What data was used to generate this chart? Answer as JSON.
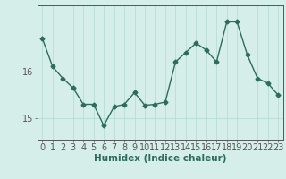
{
  "x": [
    0,
    1,
    2,
    3,
    4,
    5,
    6,
    7,
    8,
    9,
    10,
    11,
    12,
    13,
    14,
    15,
    16,
    17,
    18,
    19,
    20,
    21,
    22,
    23
  ],
  "y": [
    16.7,
    16.1,
    15.85,
    15.65,
    15.3,
    15.3,
    14.85,
    15.25,
    15.3,
    15.55,
    15.28,
    15.3,
    15.35,
    16.2,
    16.4,
    16.6,
    16.45,
    16.2,
    17.05,
    17.05,
    16.35,
    15.85,
    15.75,
    15.5
  ],
  "line_color": "#2d6b5e",
  "marker": "D",
  "marker_size": 2.5,
  "bg_color": "#d6eeea",
  "grid_color": "#b8ddd8",
  "axis_color": "#555555",
  "xlabel": "Humidex (Indice chaleur)",
  "xlim_min": -0.5,
  "xlim_max": 23.5,
  "ylim_min": 14.55,
  "ylim_max": 17.4,
  "yticks": [
    15,
    16
  ],
  "xticks": [
    0,
    1,
    2,
    3,
    4,
    5,
    6,
    7,
    8,
    9,
    10,
    11,
    12,
    13,
    14,
    15,
    16,
    17,
    18,
    19,
    20,
    21,
    22,
    23
  ],
  "xlabel_fontsize": 7.5,
  "tick_fontsize": 7,
  "linewidth": 1.0
}
